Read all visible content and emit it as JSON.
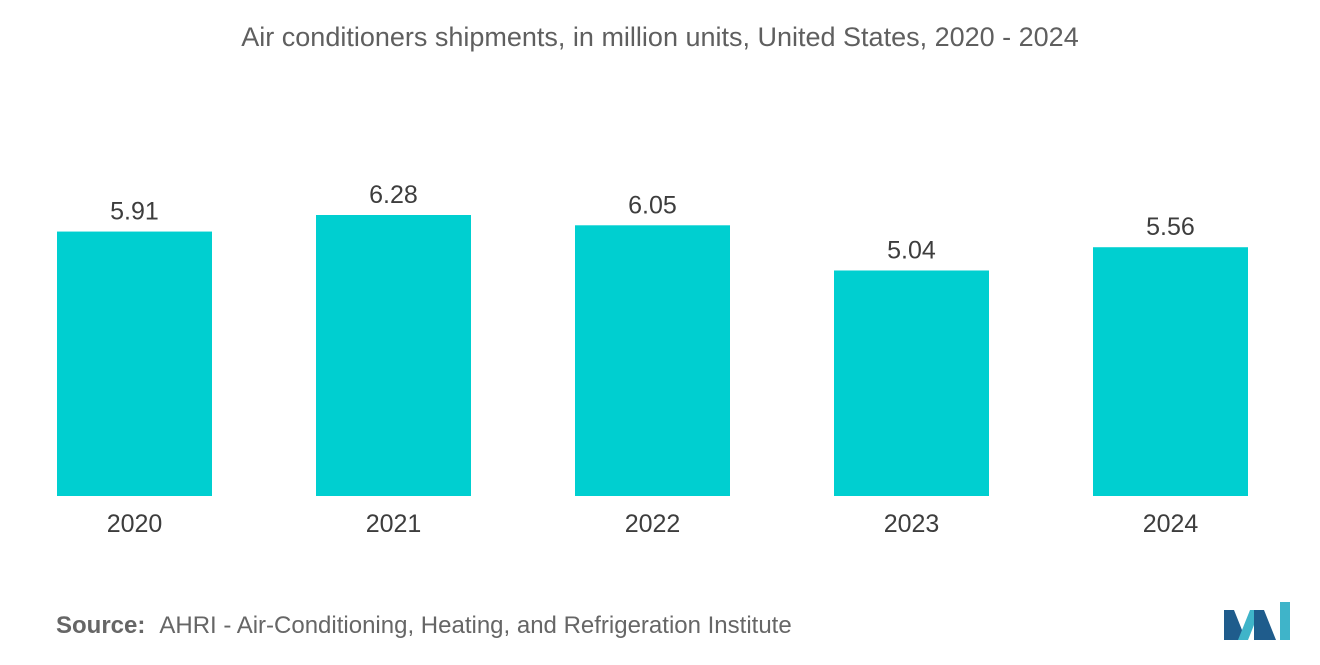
{
  "chart_data": {
    "type": "bar",
    "title": "Air conditioners shipments, in million units, United States, 2020 - 2024",
    "categories": [
      "2020",
      "2021",
      "2022",
      "2023",
      "2024"
    ],
    "values": [
      5.91,
      6.28,
      6.05,
      5.04,
      5.56
    ],
    "value_labels": [
      "5.91",
      "6.28",
      "6.05",
      "5.04",
      "5.56"
    ],
    "xlabel": "",
    "ylabel": "",
    "ylim": [
      0,
      6.28
    ],
    "grid": false,
    "bar_color": "#00cfd0"
  },
  "source": {
    "label": "Source:",
    "text": "AHRI - Air-Conditioning, Heating, and Refrigeration Institute"
  },
  "logo": {
    "icon": "mordor-intelligence-logo-icon",
    "colors": [
      "#1f5c8c",
      "#3fb4c9"
    ]
  }
}
